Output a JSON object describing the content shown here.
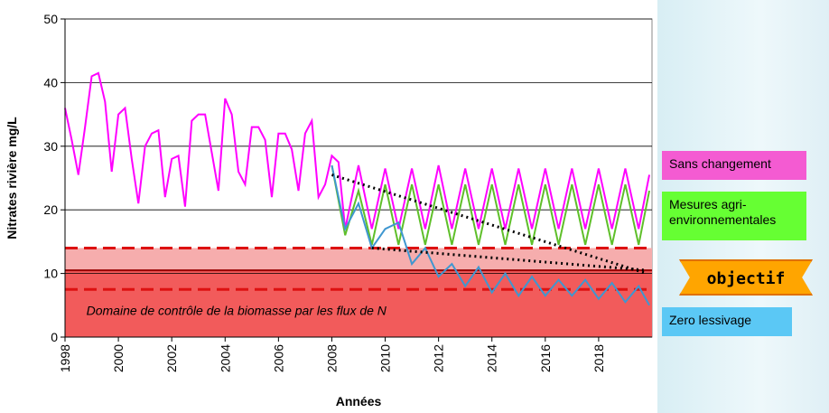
{
  "chart_data": {
    "type": "line",
    "y_label": "Nitrates rivière mg/L",
    "x_label": "Années",
    "xlim": [
      1998,
      2020
    ],
    "xticks": [
      1998,
      2000,
      2002,
      2004,
      2006,
      2008,
      2010,
      2012,
      2014,
      2016,
      2018
    ],
    "ylim": [
      0,
      50
    ],
    "yticks": [
      0,
      10,
      20,
      30,
      40,
      50
    ],
    "grid": true,
    "domain_label": "Domaine de contrôle de la biomasse par les flux de N",
    "domain_fill": [
      {
        "from": 0,
        "to": 10.5,
        "color": "#f25b5b"
      },
      {
        "from": 10.5,
        "to": 14,
        "color": "#f6adad"
      }
    ],
    "reference_lines": [
      {
        "value": 14,
        "style": "dashed"
      },
      {
        "value": 10.5,
        "style": "solid"
      },
      {
        "value": 7.5,
        "style": "dashed"
      }
    ],
    "objective_label": "objectif",
    "trend_lines": [
      {
        "x": [
          2008,
          2019.8
        ],
        "values": [
          25.5,
          10
        ]
      },
      {
        "x": [
          2009.5,
          2019.8
        ],
        "values": [
          14,
          10.5
        ]
      }
    ],
    "series": [
      {
        "name": "Sans changement",
        "color": "#ff00ff",
        "legend_color": "#f45bd2",
        "x": [
          1998,
          1998.25,
          1998.5,
          1998.75,
          1999,
          1999.25,
          1999.5,
          1999.75,
          2000,
          2000.25,
          2000.5,
          2000.75,
          2001,
          2001.25,
          2001.5,
          2001.75,
          2002,
          2002.25,
          2002.5,
          2002.75,
          2003,
          2003.25,
          2003.5,
          2003.75,
          2004,
          2004.25,
          2004.5,
          2004.75,
          2005,
          2005.25,
          2005.5,
          2005.75,
          2006,
          2006.25,
          2006.5,
          2006.75,
          2007,
          2007.25,
          2007.5,
          2007.75,
          2008,
          2008.25,
          2008.5,
          2009,
          2009.5,
          2010,
          2010.5,
          2011,
          2011.5,
          2012,
          2012.5,
          2013,
          2013.5,
          2014,
          2014.5,
          2015,
          2015.5,
          2016,
          2016.5,
          2017,
          2017.5,
          2018,
          2018.5,
          2019,
          2019.5,
          2019.9
        ],
        "values": [
          36,
          31,
          25.5,
          33,
          41,
          41.5,
          37,
          26,
          35,
          36,
          28,
          21,
          30,
          32,
          32.5,
          22,
          28,
          28.5,
          20.5,
          34,
          35,
          35,
          29,
          23,
          37.5,
          35,
          26,
          24,
          33,
          33,
          31,
          22,
          32,
          32,
          29.5,
          23,
          32,
          34,
          22,
          24,
          28.5,
          27.5,
          17,
          27,
          17,
          26.5,
          17,
          26.5,
          17,
          27,
          17,
          26.5,
          17,
          26.5,
          17,
          26.5,
          17,
          26.5,
          17,
          26.5,
          17,
          26.5,
          17,
          26.5,
          17,
          25.5
        ]
      },
      {
        "name": "Mesures agri-environnementales",
        "color": "#5fbf2a",
        "legend_color": "#66ff33",
        "x": [
          2008,
          2008.5,
          2009,
          2009.5,
          2010,
          2010.5,
          2011,
          2011.5,
          2012,
          2012.5,
          2013,
          2013.5,
          2014,
          2014.5,
          2015,
          2015.5,
          2016,
          2016.5,
          2017,
          2017.5,
          2018,
          2018.5,
          2019,
          2019.5,
          2019.9
        ],
        "values": [
          27,
          16,
          23,
          14.5,
          24,
          14.5,
          24,
          14.5,
          24,
          14.5,
          24,
          14.5,
          24,
          14.5,
          24,
          14.5,
          24,
          14.5,
          24,
          14.5,
          24,
          14.5,
          24,
          14.5,
          23
        ]
      },
      {
        "name": "Zero lessivage",
        "color": "#3f97d0",
        "legend_color": "#5bc8f5",
        "x": [
          2008,
          2008.5,
          2009,
          2009.5,
          2010,
          2010.5,
          2011,
          2011.5,
          2012,
          2012.5,
          2013,
          2013.5,
          2014,
          2014.5,
          2015,
          2015.5,
          2016,
          2016.5,
          2017,
          2017.5,
          2018,
          2018.5,
          2019,
          2019.5,
          2019.9
        ],
        "values": [
          27,
          17,
          21,
          14,
          17,
          18,
          11.5,
          14,
          9.5,
          11.5,
          8,
          11,
          7,
          10,
          6.5,
          9.5,
          6.5,
          9,
          6.5,
          9,
          6,
          8.5,
          5.5,
          8,
          5
        ]
      }
    ]
  }
}
